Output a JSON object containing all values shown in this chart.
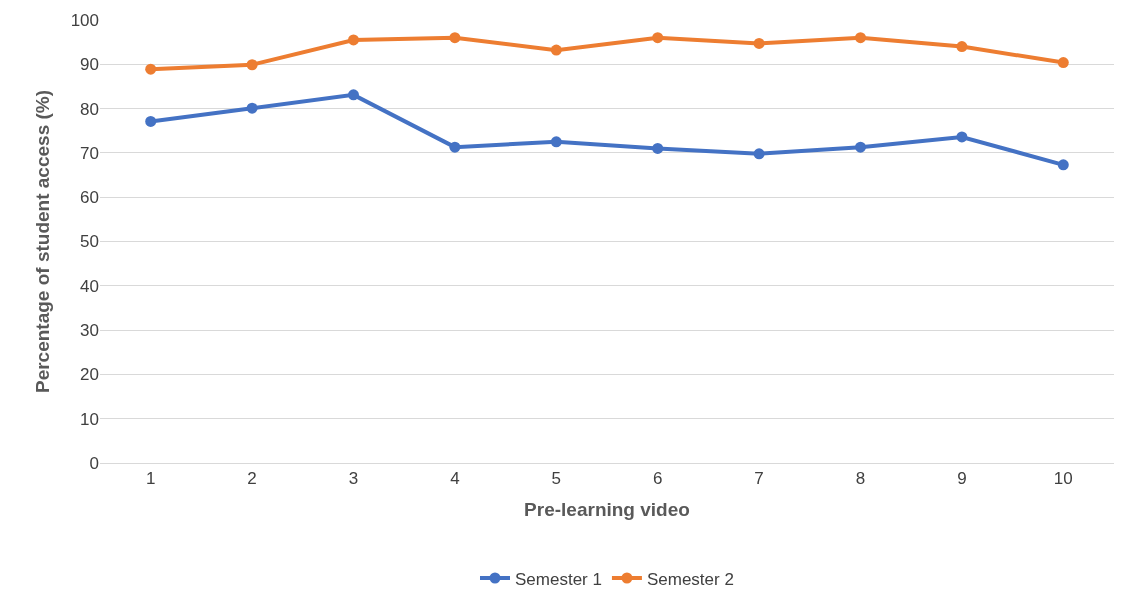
{
  "chart_data": {
    "type": "line",
    "xlabel": "Pre-learning video",
    "ylabel": "Percentage of student access (%)",
    "categories": [
      "1",
      "2",
      "3",
      "4",
      "5",
      "6",
      "7",
      "8",
      "9",
      "10"
    ],
    "series": [
      {
        "name": "Semester 1",
        "color": "#4472c4",
        "values": [
          77.1,
          80.1,
          83.1,
          71.3,
          72.5,
          71.0,
          69.8,
          71.3,
          73.6,
          67.3
        ]
      },
      {
        "name": "Semester 2",
        "color": "#ed7d31",
        "values": [
          88.9,
          89.9,
          95.5,
          96.0,
          93.2,
          96.0,
          94.7,
          96.0,
          94.0,
          90.4
        ]
      }
    ],
    "ylim": [
      0,
      100
    ],
    "yticks": [
      0,
      10,
      20,
      30,
      40,
      50,
      60,
      70,
      80,
      90,
      100
    ],
    "grid": "y",
    "legend": "bottom",
    "marker": "circle",
    "line_style": "solid"
  }
}
